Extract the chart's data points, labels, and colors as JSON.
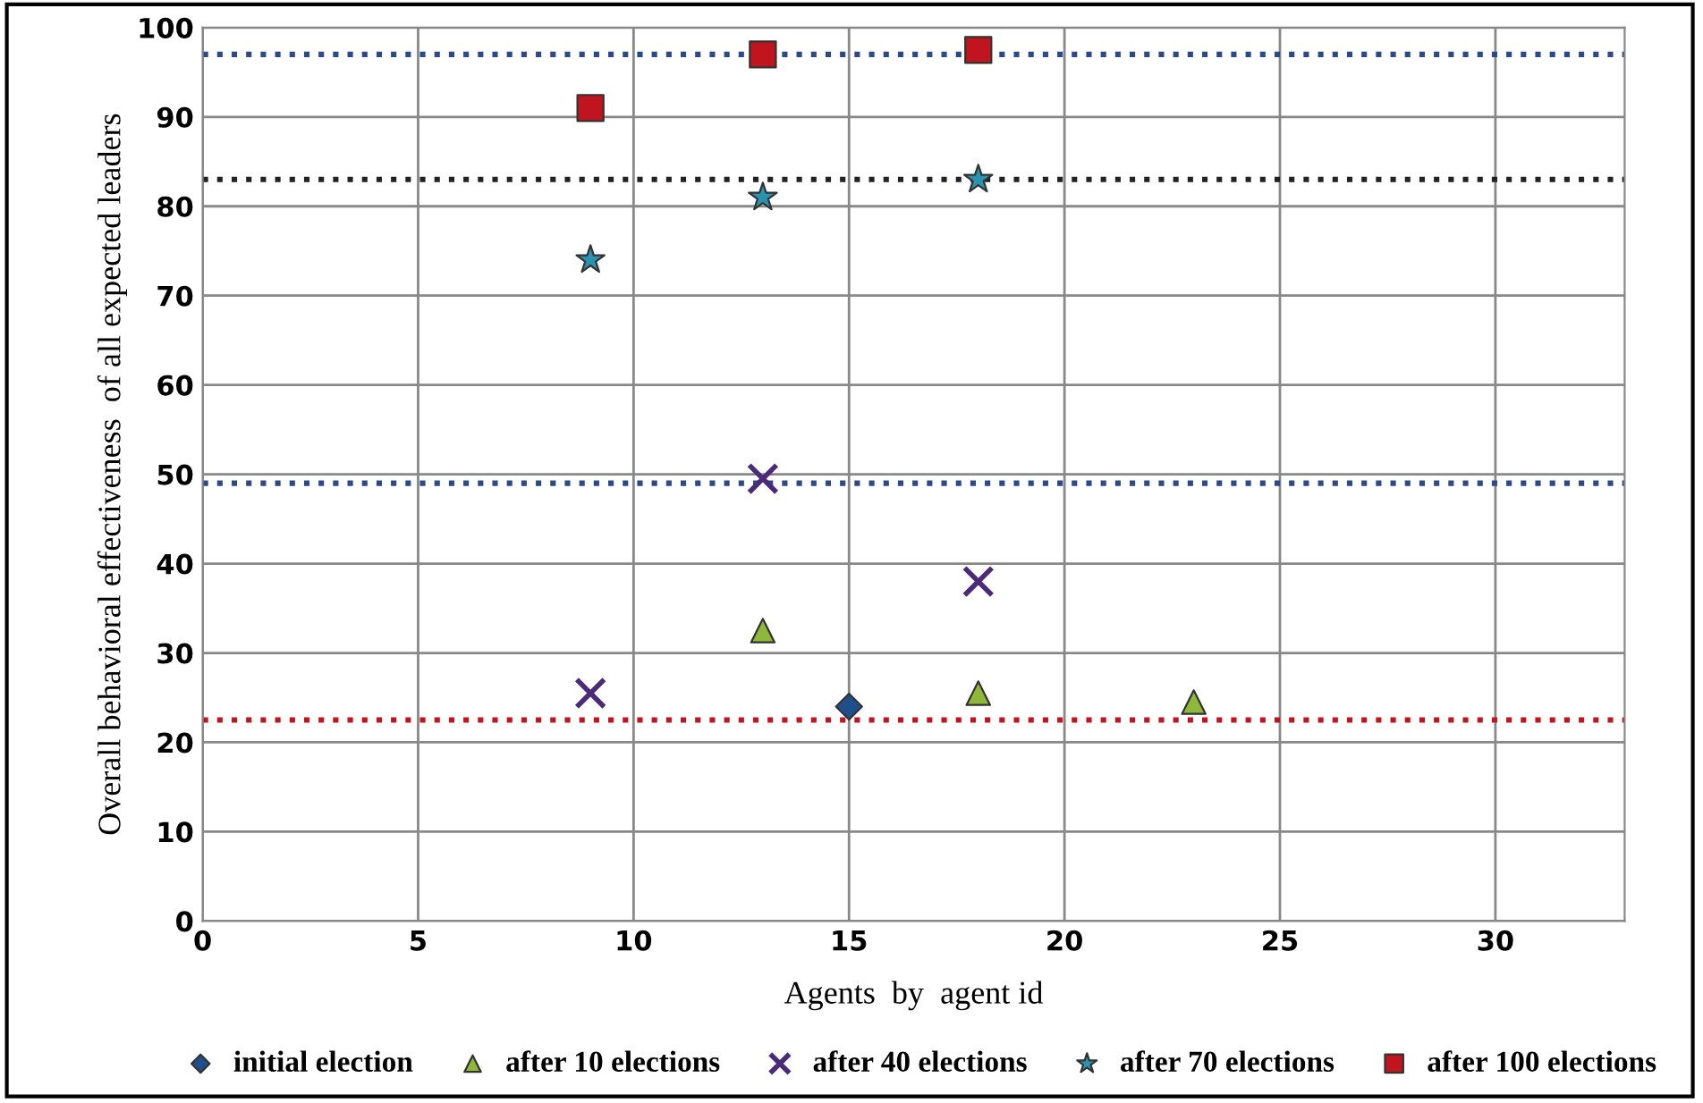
{
  "chart_data": {
    "type": "scatter",
    "xlabel": "Agents  by  agent id",
    "ylabel": "Overall behavioral effectiveness  of all expected leaders",
    "xlim": [
      0,
      33
    ],
    "xticks": [
      0,
      5,
      10,
      15,
      20,
      25,
      30
    ],
    "ylim": [
      0,
      100
    ],
    "yticks": [
      0,
      10,
      20,
      30,
      40,
      50,
      60,
      70,
      80,
      90,
      100
    ],
    "grid": true,
    "legend": "bottom",
    "series": [
      {
        "name": "initial election",
        "color": "#1f4e8c",
        "marker": "diamond",
        "x": [
          15
        ],
        "values": [
          24
        ]
      },
      {
        "name": "after 10 elections",
        "color": "#8db83a",
        "marker": "triangle",
        "x": [
          13,
          18,
          23
        ],
        "values": [
          32.5,
          25.5,
          24.5
        ]
      },
      {
        "name": "after 40 elections",
        "color": "#4b2a7a",
        "marker": "cross",
        "x": [
          9,
          13,
          18
        ],
        "values": [
          25.5,
          49.5,
          38
        ]
      },
      {
        "name": "after 70 elections",
        "color": "#2a94b0",
        "marker": "star",
        "x": [
          9,
          13,
          18
        ],
        "values": [
          74,
          81,
          83
        ]
      },
      {
        "name": "after 100 elections",
        "color": "#c0141e",
        "marker": "square",
        "x": [
          9,
          13,
          18
        ],
        "values": [
          91,
          97,
          97.5
        ]
      }
    ],
    "ref_lines": [
      {
        "axis": "y",
        "value": 97,
        "color": "#2b4a8a",
        "line_style": "dotted"
      },
      {
        "axis": "y",
        "value": 83,
        "color": "#222222",
        "line_style": "dotted"
      },
      {
        "axis": "y",
        "value": 49,
        "color": "#2b4a8a",
        "line_style": "dotted"
      },
      {
        "axis": "y",
        "value": 22.5,
        "color": "#c0141e",
        "line_style": "dotted"
      }
    ]
  }
}
